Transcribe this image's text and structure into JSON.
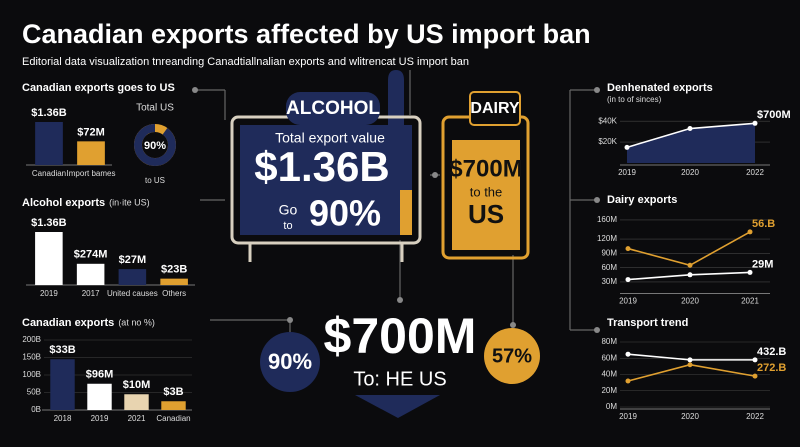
{
  "header": {
    "title": "Canadian exports affected by US import ban",
    "subtitle": "Editorial data visualization tnreanding Canadtiallnalian exports and wlitrencat US import ban"
  },
  "panels": {
    "alcohol": {
      "tag": "ALCOHOL",
      "caption": "Total export value",
      "value": "$1.36B",
      "go": "Go",
      "to": "to",
      "share": "90%"
    },
    "dairy": {
      "tag": "DAIRY",
      "value": "$700M",
      "caption": "to the",
      "place": "US"
    },
    "bottom": {
      "left": "90%",
      "value": "$700M",
      "caption": "To: HE US",
      "right": "57%"
    }
  },
  "chart_data": [
    {
      "type": "bar",
      "title": "Canadian exports goes to US",
      "categories": [
        "Canadian",
        "Import bames"
      ],
      "values": [
        100,
        55
      ],
      "ylim": [
        0,
        100
      ],
      "labels": [
        "$1.36B",
        "$72M"
      ],
      "colors": [
        "#1f2b5a",
        "#e0a030"
      ]
    },
    {
      "type": "donut",
      "title": "Total US",
      "values": [
        90
      ],
      "value_labels": [
        "90%"
      ],
      "subtitle": "to US",
      "color": "#1f2b5a"
    },
    {
      "type": "bar",
      "title": "Alcohol exports",
      "note": "(in·ite US)",
      "categories": [
        "2019",
        "2017",
        "United causes",
        "Others"
      ],
      "values": [
        100,
        40,
        30,
        12
      ],
      "ylim": [
        0,
        100
      ],
      "labels": [
        "$1.36B",
        "$274M",
        "$27M",
        "$23B"
      ],
      "colors": [
        "#ffffff",
        "#ffffff",
        "#1f2b5a",
        "#e0a030"
      ]
    },
    {
      "type": "bar",
      "title": "Canadian exports",
      "note": "(at no %)",
      "categories": [
        "2018",
        "2019",
        "2021",
        "Canadian"
      ],
      "values": [
        145,
        75,
        45,
        25
      ],
      "ylim": [
        0,
        200
      ],
      "yticks": [
        {
          "value": 0,
          "label": "0B"
        },
        {
          "value": 50,
          "label": "50B"
        },
        {
          "value": 100,
          "label": "100B"
        },
        {
          "value": 150,
          "label": "150B"
        },
        {
          "value": 200,
          "label": "200B"
        }
      ],
      "labels": [
        "$33B",
        "$96M",
        "$10M",
        "$3B"
      ],
      "colors": [
        "#1f2b5a",
        "#ffffff",
        "#e8d4b0",
        "#e0a030"
      ]
    },
    {
      "type": "line",
      "title": "Denhenated exports",
      "subtitle": "(in to of sinces)",
      "categories": [
        "2019",
        "2020",
        "2022"
      ],
      "series": [
        {
          "values": [
            15,
            33,
            38
          ],
          "color": "#ffffff",
          "label": "$700M"
        }
      ],
      "area": "#1f2b5a",
      "ylim": [
        0,
        45
      ],
      "yticks": [
        {
          "value": 20,
          "label": "$20K"
        },
        {
          "value": 40,
          "label": "$40K"
        }
      ]
    },
    {
      "type": "line",
      "title": "Dairy exports",
      "categories": [
        "2019",
        "2020",
        "2021"
      ],
      "series": [
        {
          "values": [
            100,
            65,
            135
          ],
          "color": "#e0a030",
          "label": "56.B"
        },
        {
          "values": [
            35,
            45,
            50
          ],
          "color": "#ffffff",
          "label": "29M"
        }
      ],
      "ylim": [
        10,
        170
      ],
      "yticks": [
        {
          "value": 30,
          "label": "30M"
        },
        {
          "value": 60,
          "label": "60M"
        },
        {
          "value": 90,
          "label": "90M"
        },
        {
          "value": 120,
          "label": "120M"
        },
        {
          "value": 160,
          "label": "160M"
        }
      ]
    },
    {
      "type": "line",
      "title": "Transport trend",
      "categories": [
        "2019",
        "2020",
        "2022"
      ],
      "series": [
        {
          "values": [
            65,
            58,
            58
          ],
          "color": "#ffffff",
          "label": "432.B"
        },
        {
          "values": [
            32,
            52,
            38
          ],
          "color": "#e0a030",
          "label": "272.B"
        }
      ],
      "ylim": [
        0,
        80
      ],
      "yticks": [
        {
          "value": 0,
          "label": "0M"
        },
        {
          "value": 20,
          "label": "20M"
        },
        {
          "value": 40,
          "label": "40M"
        },
        {
          "value": 60,
          "label": "60M"
        },
        {
          "value": 80,
          "label": "80M"
        }
      ]
    }
  ]
}
